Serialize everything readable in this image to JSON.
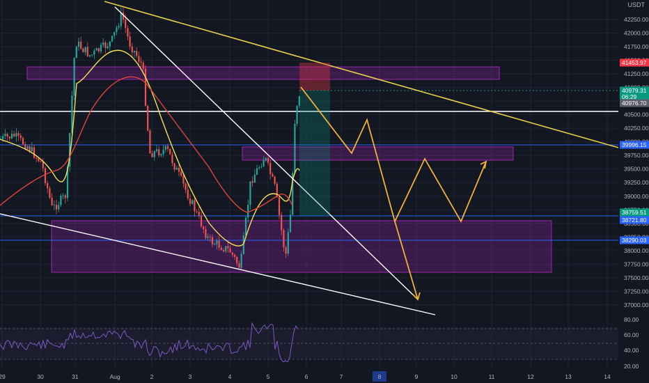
{
  "symbol_quote": "USDT",
  "colors": {
    "bg": "#131722",
    "grid": "#1f2430",
    "axis_text": "#b2b5be",
    "candle_up": "#26a69a",
    "candle_down": "#ef5350",
    "ma_fast": "#f5e15a",
    "ma_slow": "#e0433b",
    "trend_yellow": "#e6d04a",
    "trend_white": "#ffffff",
    "zone_purple": "rgba(156,39,176,0.28)",
    "zone_border": "#9c27b0",
    "projection": "#f0b03a",
    "blue_level": "#2962ff",
    "rsi_line": "#7e57c2"
  },
  "price_axis": {
    "ticks": [
      "42250.00",
      "42000.00",
      "41750.00",
      "41500.00",
      "41250.00",
      "41000.00",
      "40750.00",
      "40500.00",
      "40250.00",
      "40000.00",
      "39750.00",
      "39500.00",
      "39250.00",
      "39000.00",
      "38750.00",
      "38500.00",
      "38250.00",
      "38000.00",
      "37750.00",
      "37500.00",
      "37250.00",
      "37000.00"
    ],
    "tags": [
      {
        "label": "41453.97",
        "color": "#f23645"
      },
      {
        "label": "40979.31",
        "color": "#089981"
      },
      {
        "label": "06:29",
        "color": "#089981"
      },
      {
        "label": "40976.70",
        "color": "#5d606b"
      },
      {
        "label": "39996.15",
        "color": "#2962ff"
      },
      {
        "label": "38759.51",
        "color": "#089981"
      },
      {
        "label": "38721.80",
        "color": "#2962ff"
      },
      {
        "label": "38290.03",
        "color": "#2962ff"
      }
    ]
  },
  "rsi_axis": {
    "ticks": [
      "80.00",
      "60.00",
      "40.00",
      "20.00"
    ]
  },
  "time_axis": {
    "labels": [
      "29",
      "30",
      "31",
      "Aug",
      "2",
      "3",
      "4",
      "5",
      "6",
      "7",
      "8",
      "9",
      "10",
      "11",
      "12",
      "13",
      "14"
    ],
    "highlight": "8"
  }
}
